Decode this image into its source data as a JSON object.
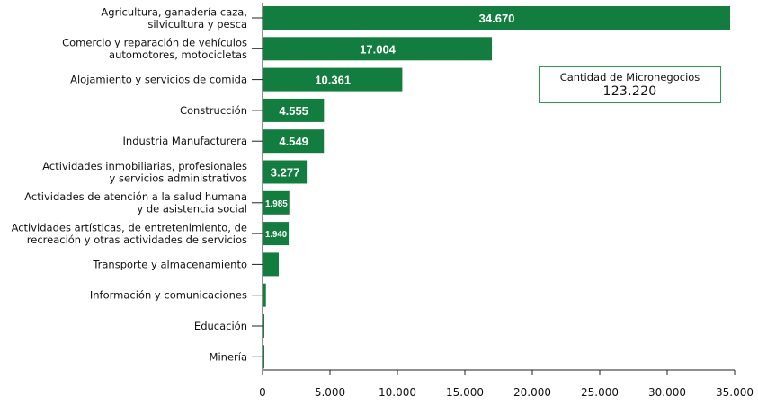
{
  "chart_data": {
    "type": "bar",
    "orientation": "horizontal",
    "bar_color": "#137d3f",
    "categories": [
      [
        "Agricultura, ganadería caza,",
        "silvicultura y pesca"
      ],
      [
        "Comercio y reparación de vehículos",
        "automotores, motocicletas"
      ],
      [
        "Alojamiento y servicios de comida"
      ],
      [
        "Construcción"
      ],
      [
        "Industria Manufacturera"
      ],
      [
        "Actividades inmobiliarias, profesionales",
        "y servicios administrativos"
      ],
      [
        "Actividades de atención a la salud humana",
        "y de asistencia social"
      ],
      [
        "Actividades artísticas, de entretenimiento, de",
        "recreación y otras actividades de servicios"
      ],
      [
        "Transporte y almacenamiento"
      ],
      [
        "Información y comunicaciones"
      ],
      [
        "Educación"
      ],
      [
        "Minería"
      ]
    ],
    "values": [
      34670,
      17004,
      10361,
      4555,
      4549,
      3277,
      1985,
      1940,
      1200,
      250,
      100,
      50
    ],
    "data_labels": [
      "34.670",
      "17.004",
      "10.361",
      "4.555",
      "4.549",
      "3.277",
      "1.985",
      "1.940",
      "",
      "",
      "",
      ""
    ],
    "xlim": [
      0,
      35000
    ],
    "xticks": [
      0,
      5000,
      10000,
      15000,
      20000,
      25000,
      30000,
      35000
    ],
    "xtick_labels": [
      "0",
      "5.000",
      "10.000",
      "15.000",
      "20.000",
      "25.000",
      "30.000",
      "35.000"
    ],
    "grid": false,
    "title": "",
    "xlabel": "",
    "ylabel": ""
  },
  "summary_box": {
    "title": "Cantidad de Micronegocios",
    "value": "123.220"
  }
}
